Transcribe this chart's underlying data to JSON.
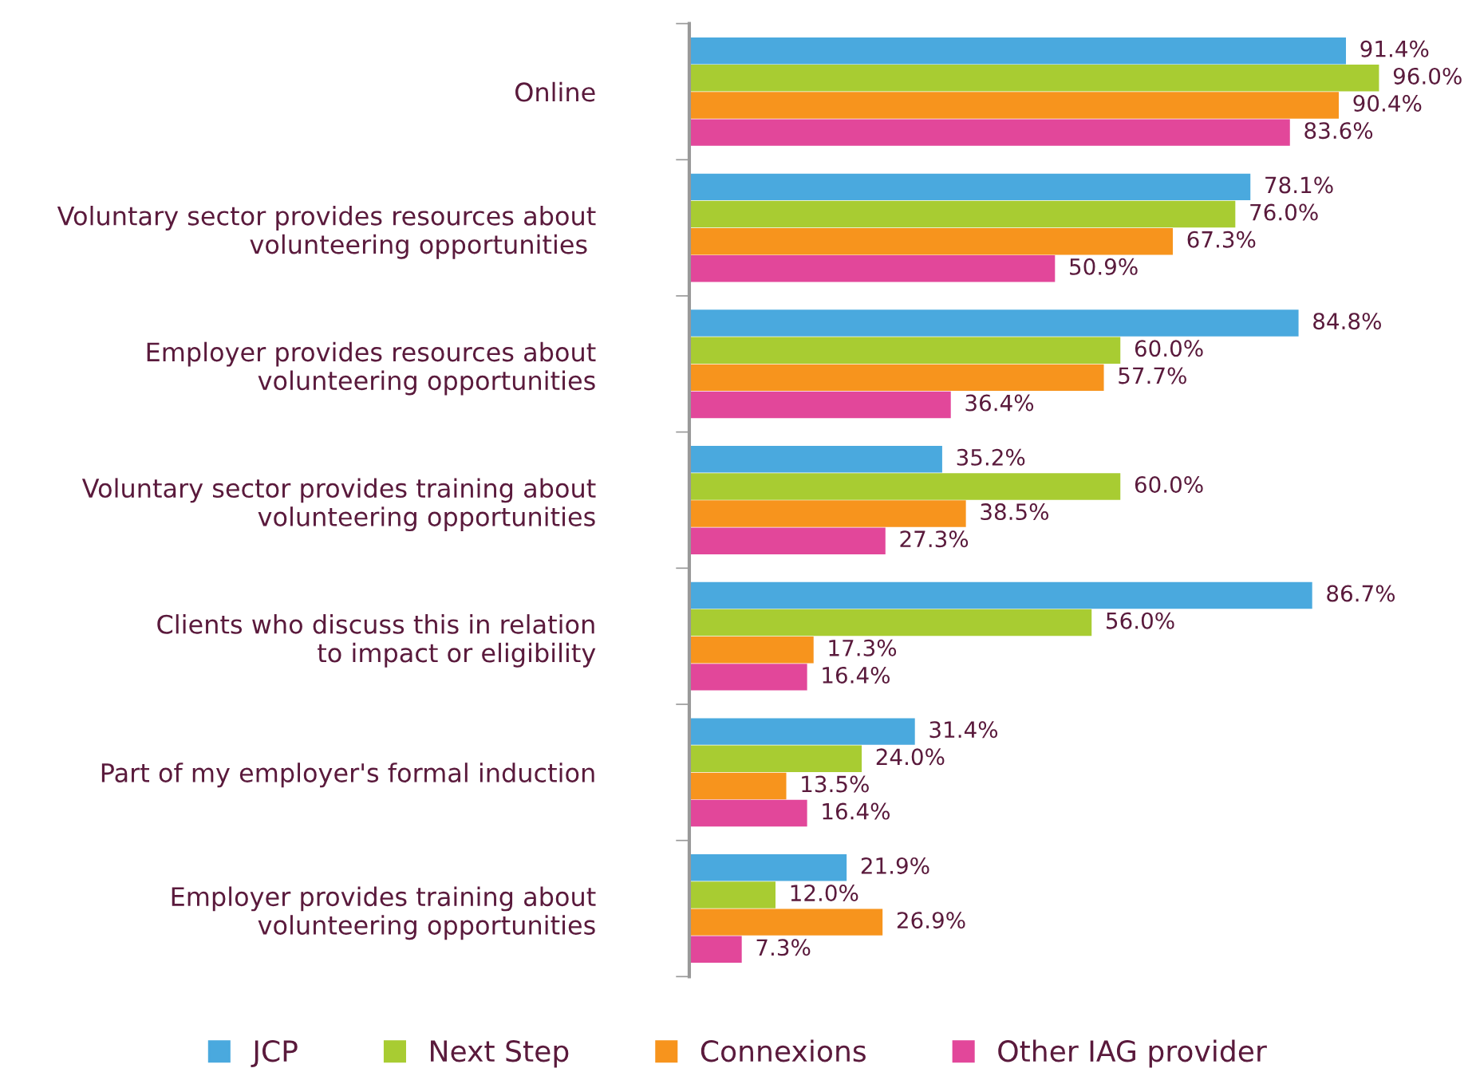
{
  "chart_data": {
    "type": "bar",
    "orientation": "horizontal",
    "tick_labels": "y",
    "legend": "bottom",
    "grid": false,
    "categories": [
      "Online",
      "Voluntary sector provides resources about\nvolunteering opportunities ",
      "Employer provides resources about\nvolunteering opportunities",
      "Voluntary sector provides training about\nvolunteering opportunities",
      "Clients who discuss this in relation\nto impact or eligibility",
      "Part of my employer's formal induction",
      "Employer provides training about\nvolunteering opportunities"
    ],
    "series": [
      {
        "name": "JCP",
        "color": "#4aa9de",
        "values": [
          91.4,
          78.1,
          84.8,
          35.2,
          86.7,
          31.4,
          21.9
        ],
        "value_labels": [
          "91.4%",
          "78.1%",
          "84.8%",
          "35.2%",
          "86.7%",
          "31.4%",
          "21.9%"
        ]
      },
      {
        "name": "Next Step",
        "color": "#a8cc32",
        "values": [
          96.0,
          76.0,
          60.0,
          60.0,
          56.0,
          24.0,
          12.0
        ],
        "value_labels": [
          "96.0%",
          "76.0%",
          "60.0%",
          "60.0%",
          "56.0%",
          "24.0%",
          "12.0%"
        ]
      },
      {
        "name": "Connexions",
        "color": "#f7941d",
        "values": [
          90.4,
          67.3,
          57.7,
          38.5,
          17.3,
          13.5,
          26.9
        ],
        "value_labels": [
          "90.4%",
          "67.3%",
          "57.7%",
          "38.5%",
          "17.3%",
          "13.5%",
          "26.9%"
        ]
      },
      {
        "name": "Other IAG provider",
        "color": "#e2479a",
        "values": [
          83.6,
          50.9,
          36.4,
          27.3,
          16.4,
          16.4,
          7.3
        ],
        "value_labels": [
          "83.6%",
          "50.9%",
          "36.4%",
          "27.3%",
          "16.4%",
          "16.4%",
          "7.3%"
        ]
      }
    ]
  }
}
